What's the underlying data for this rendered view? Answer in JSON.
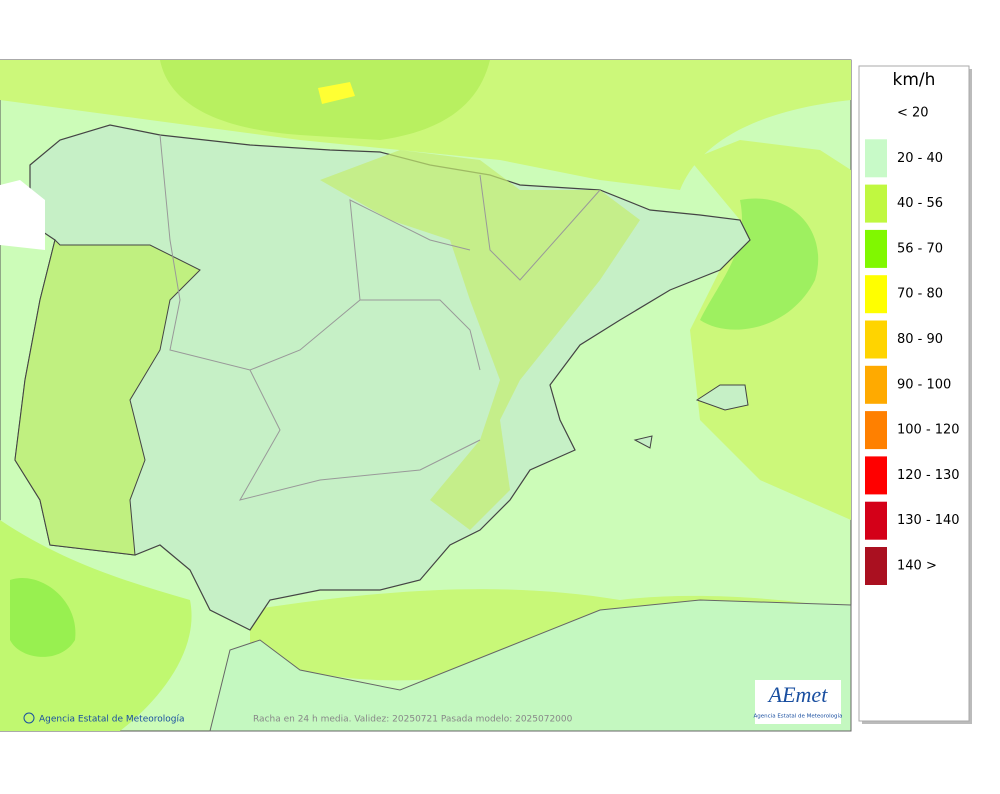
{
  "legend": {
    "unit": "km/h",
    "items": [
      {
        "label": "< 20",
        "color": "#ffffff"
      },
      {
        "label": "20 - 40",
        "color": "#c8fac8"
      },
      {
        "label": "40 - 56",
        "color": "#c0f840"
      },
      {
        "label": "56 - 70",
        "color": "#80f800"
      },
      {
        "label": "70 - 80",
        "color": "#ffff00"
      },
      {
        "label": "80 - 90",
        "color": "#ffd400"
      },
      {
        "label": "90 - 100",
        "color": "#ffaa00"
      },
      {
        "label": "100 - 120",
        "color": "#ff8000"
      },
      {
        "label": "120 - 130",
        "color": "#ff0000"
      },
      {
        "label": "130 - 140",
        "color": "#d40018"
      },
      {
        "label": "140 >",
        "color": "#aa1020"
      }
    ]
  },
  "footer": {
    "credit": "Agencia Estatal de Meteorología",
    "caption": "Racha en 24 h media. Validez: 20250721 Pasada modelo: 2025072000"
  },
  "logo": {
    "text": "AEmet",
    "subtitle": "Agencia Estatal de Meteorología"
  }
}
